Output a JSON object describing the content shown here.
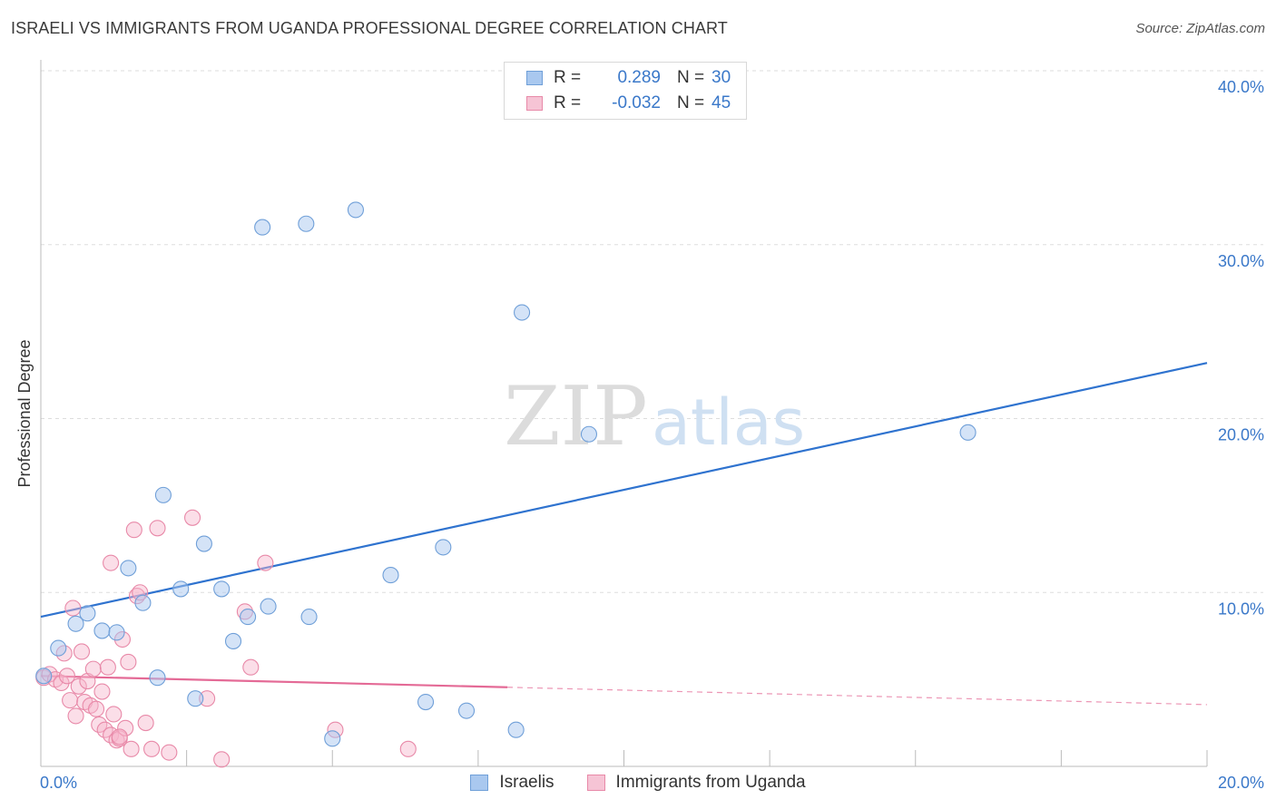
{
  "header": {
    "title": "ISRAELI VS IMMIGRANTS FROM UGANDA PROFESSIONAL DEGREE CORRELATION CHART",
    "source": "Source: ZipAtlas.com"
  },
  "watermark": {
    "zip": "ZIP",
    "atlas": "atlas"
  },
  "legend": {
    "rows": [
      {
        "r_label": "R =",
        "r_value": "0.289",
        "n_label": "N =",
        "n_value": "30"
      },
      {
        "r_label": "R =",
        "r_value": "-0.032",
        "n_label": "N =",
        "n_value": "45"
      }
    ]
  },
  "colors": {
    "israelis_fill": "#a9c8ef",
    "israelis_stroke": "#6f9fd8",
    "israelis_line": "#2f73cf",
    "uganda_fill": "#f6b6cb",
    "uganda_stroke": "#e889a8",
    "uganda_line": "#e46a96",
    "tick": "#3a78c9",
    "grid": "#dddddd"
  },
  "chart_data": {
    "type": "scatter",
    "title": "ISRAELI VS IMMIGRANTS FROM UGANDA PROFESSIONAL DEGREE CORRELATION CHART",
    "xlabel": "",
    "ylabel": "Professional Degree",
    "xlim": [
      0,
      20
    ],
    "ylim": [
      0,
      40
    ],
    "x_tick_labels": [
      "0.0%",
      "20.0%"
    ],
    "y_ticks": [
      10,
      20,
      30,
      40
    ],
    "y_tick_labels": [
      "10.0%",
      "20.0%",
      "30.0%",
      "40.0%"
    ],
    "grid": true,
    "legend_position": "top-center",
    "series": [
      {
        "name": "Israelis",
        "R": 0.289,
        "N": 30,
        "points": [
          {
            "x": 0.05,
            "y": 5.2
          },
          {
            "x": 0.3,
            "y": 6.8
          },
          {
            "x": 0.6,
            "y": 8.2
          },
          {
            "x": 0.8,
            "y": 8.8
          },
          {
            "x": 1.05,
            "y": 7.8
          },
          {
            "x": 1.3,
            "y": 7.7
          },
          {
            "x": 1.5,
            "y": 11.4
          },
          {
            "x": 1.75,
            "y": 9.4
          },
          {
            "x": 2.0,
            "y": 5.1
          },
          {
            "x": 2.1,
            "y": 15.6
          },
          {
            "x": 2.4,
            "y": 10.2
          },
          {
            "x": 2.65,
            "y": 3.9
          },
          {
            "x": 2.8,
            "y": 12.8
          },
          {
            "x": 3.1,
            "y": 10.2
          },
          {
            "x": 3.3,
            "y": 7.2
          },
          {
            "x": 3.55,
            "y": 8.6
          },
          {
            "x": 3.8,
            "y": 31.0
          },
          {
            "x": 3.9,
            "y": 9.2
          },
          {
            "x": 4.55,
            "y": 31.2
          },
          {
            "x": 4.6,
            "y": 8.6
          },
          {
            "x": 5.0,
            "y": 1.6
          },
          {
            "x": 5.4,
            "y": 32.0
          },
          {
            "x": 6.0,
            "y": 11.0
          },
          {
            "x": 6.6,
            "y": 3.7
          },
          {
            "x": 6.9,
            "y": 12.6
          },
          {
            "x": 7.3,
            "y": 3.2
          },
          {
            "x": 8.15,
            "y": 2.1
          },
          {
            "x": 8.25,
            "y": 26.1
          },
          {
            "x": 9.4,
            "y": 19.1
          },
          {
            "x": 15.9,
            "y": 19.2
          }
        ],
        "trend": {
          "x": [
            0,
            20
          ],
          "y": [
            8.6,
            23.2
          ]
        }
      },
      {
        "name": "Immigrants from Uganda",
        "R": -0.032,
        "N": 45,
        "points": [
          {
            "x": 0.05,
            "y": 5.1
          },
          {
            "x": 0.15,
            "y": 5.3
          },
          {
            "x": 0.25,
            "y": 5.0
          },
          {
            "x": 0.35,
            "y": 4.8
          },
          {
            "x": 0.4,
            "y": 6.5
          },
          {
            "x": 0.45,
            "y": 5.2
          },
          {
            "x": 0.5,
            "y": 3.8
          },
          {
            "x": 0.55,
            "y": 9.1
          },
          {
            "x": 0.6,
            "y": 2.9
          },
          {
            "x": 0.65,
            "y": 4.6
          },
          {
            "x": 0.7,
            "y": 6.6
          },
          {
            "x": 0.75,
            "y": 3.7
          },
          {
            "x": 0.8,
            "y": 4.9
          },
          {
            "x": 0.85,
            "y": 3.5
          },
          {
            "x": 0.9,
            "y": 5.6
          },
          {
            "x": 0.95,
            "y": 3.3
          },
          {
            "x": 1.0,
            "y": 2.4
          },
          {
            "x": 1.05,
            "y": 4.3
          },
          {
            "x": 1.1,
            "y": 2.1
          },
          {
            "x": 1.15,
            "y": 5.7
          },
          {
            "x": 1.2,
            "y": 1.8
          },
          {
            "x": 1.25,
            "y": 3.0
          },
          {
            "x": 1.3,
            "y": 1.5
          },
          {
            "x": 1.35,
            "y": 1.6
          },
          {
            "x": 1.4,
            "y": 7.3
          },
          {
            "x": 1.45,
            "y": 2.2
          },
          {
            "x": 1.5,
            "y": 6.0
          },
          {
            "x": 1.55,
            "y": 1.0
          },
          {
            "x": 1.6,
            "y": 13.6
          },
          {
            "x": 1.65,
            "y": 9.8
          },
          {
            "x": 1.7,
            "y": 10.0
          },
          {
            "x": 1.8,
            "y": 2.5
          },
          {
            "x": 1.9,
            "y": 1.0
          },
          {
            "x": 2.0,
            "y": 13.7
          },
          {
            "x": 2.2,
            "y": 0.8
          },
          {
            "x": 2.6,
            "y": 14.3
          },
          {
            "x": 2.85,
            "y": 3.9
          },
          {
            "x": 3.1,
            "y": 0.4
          },
          {
            "x": 3.5,
            "y": 8.9
          },
          {
            "x": 3.6,
            "y": 5.7
          },
          {
            "x": 3.85,
            "y": 11.7
          },
          {
            "x": 5.05,
            "y": 2.1
          },
          {
            "x": 6.3,
            "y": 1.0
          },
          {
            "x": 1.2,
            "y": 11.7
          },
          {
            "x": 1.35,
            "y": 1.7
          }
        ],
        "trend_solid": {
          "x": [
            0,
            8.0
          ],
          "y": [
            5.2,
            4.55
          ]
        },
        "trend_dashed": {
          "x": [
            8.0,
            20
          ],
          "y": [
            4.55,
            3.55
          ]
        }
      }
    ]
  },
  "bottom_legend": {
    "israelis": "Israelis",
    "uganda": "Immigrants from Uganda"
  }
}
